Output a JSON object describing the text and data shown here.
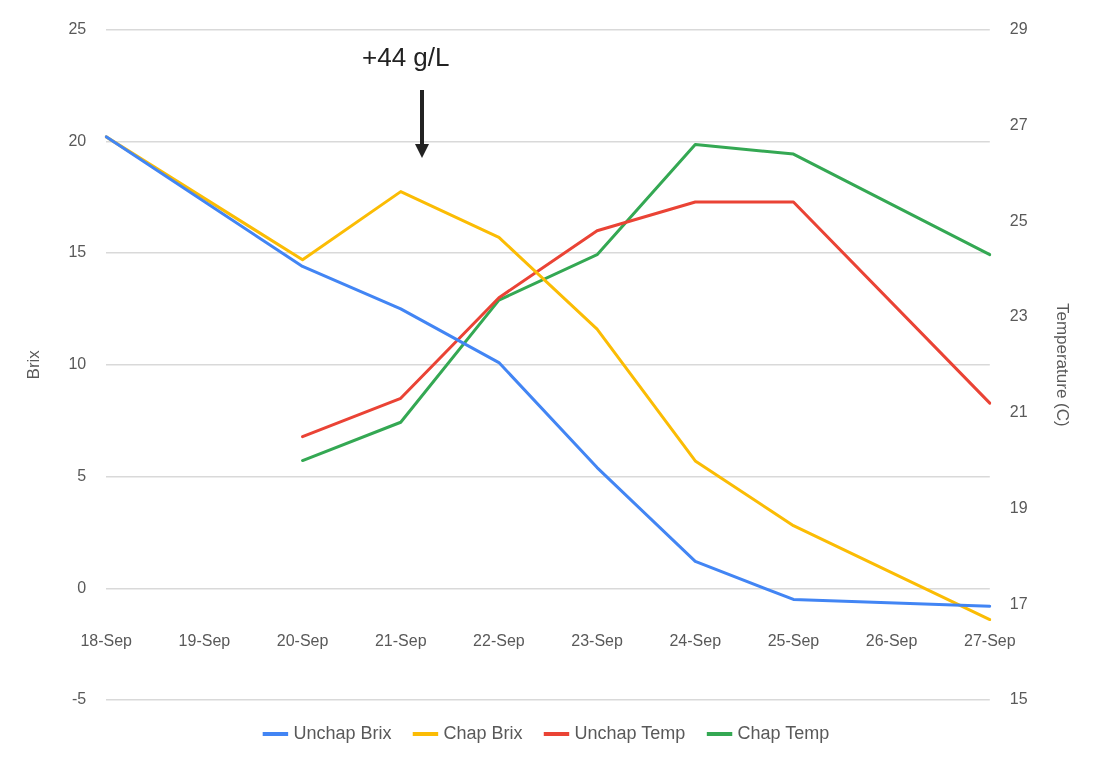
{
  "chart_data": {
    "type": "line",
    "ylabel": "Brix",
    "y2label": "Temperature (C)",
    "categories": [
      "18-Sep",
      "19-Sep",
      "20-Sep",
      "21-Sep",
      "22-Sep",
      "23-Sep",
      "24-Sep",
      "25-Sep",
      "26-Sep",
      "27-Sep"
    ],
    "series": [
      {
        "name": "Unchap Brix",
        "color": "#4285f4",
        "values": [
          20.2,
          null,
          14.4,
          12.5,
          10.1,
          5.4,
          1.2,
          -0.5,
          null,
          -0.8
        ]
      },
      {
        "name": "Chap Brix",
        "color": "#fbbc04",
        "values": [
          20.2,
          null,
          14.7,
          17.75,
          15.7,
          11.6,
          5.7,
          2.8,
          null,
          -1.4
        ]
      },
      {
        "name": "Unchap Temp",
        "color": "#ea4335",
        "axis": "y2",
        "values": [
          null,
          null,
          20.5,
          21.3,
          23.4,
          24.8,
          25.4,
          25.4,
          null,
          21.2
        ]
      },
      {
        "name": "Chap Temp",
        "color": "#34a853",
        "axis": "y2",
        "values": [
          null,
          null,
          20.0,
          20.8,
          23.35,
          24.3,
          26.6,
          26.4,
          null,
          24.3
        ]
      }
    ],
    "ylim": [
      -5,
      25
    ],
    "yticks": [
      -5,
      0,
      5,
      10,
      15,
      20,
      25
    ],
    "y2lim": [
      15,
      29
    ],
    "y2ticks": [
      15,
      17,
      19,
      21,
      23,
      25,
      27,
      29
    ],
    "grid": "y",
    "legend": "bottom",
    "marker": "none",
    "annotations": [
      "+44 g/L"
    ]
  }
}
